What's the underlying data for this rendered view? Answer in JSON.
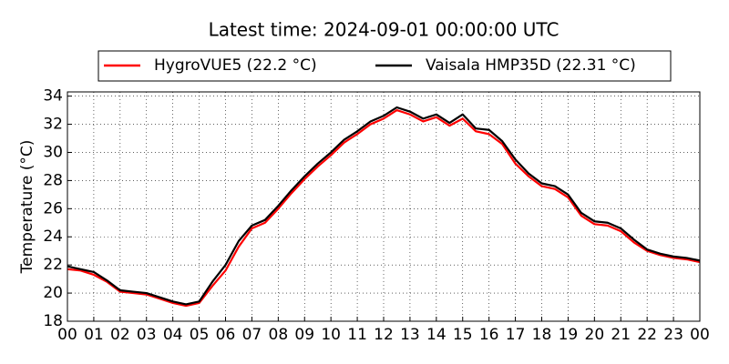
{
  "chart_data": {
    "type": "line",
    "title": "Latest time: 2024-09-01 00:00:00 UTC",
    "y_label": "Temperature (°C)",
    "x": [
      0,
      0.5,
      1,
      1.5,
      2,
      2.5,
      3,
      3.5,
      4,
      4.5,
      5,
      5.5,
      6,
      6.5,
      7,
      7.5,
      8,
      8.5,
      9,
      9.5,
      10,
      10.5,
      11,
      11.5,
      12,
      12.5,
      13,
      13.5,
      14,
      14.5,
      15,
      15.5,
      16,
      16.5,
      17,
      17.5,
      18,
      18.5,
      19,
      19.5,
      20,
      20.5,
      21,
      21.5,
      22,
      22.5,
      23,
      23.5,
      24
    ],
    "series": [
      {
        "name": "HygroVUE5 (22.2 °C)",
        "color": "#ff0000",
        "values": [
          21.7,
          21.6,
          21.3,
          20.8,
          20.1,
          20.0,
          19.9,
          19.6,
          19.3,
          19.1,
          19.3,
          20.5,
          21.6,
          23.3,
          24.6,
          25.0,
          26.0,
          27.1,
          28.1,
          29.0,
          29.8,
          30.7,
          31.3,
          32.0,
          32.4,
          33.0,
          32.7,
          32.2,
          32.5,
          31.9,
          32.4,
          31.5,
          31.3,
          30.6,
          29.2,
          28.3,
          27.6,
          27.4,
          26.8,
          25.5,
          24.9,
          24.8,
          24.4,
          23.6,
          23.0,
          22.7,
          22.5,
          22.4,
          22.2
        ]
      },
      {
        "name": "Vaisala HMP35D (22.31 °C)",
        "color": "#000000",
        "values": [
          21.9,
          21.7,
          21.5,
          20.9,
          20.2,
          20.1,
          20.0,
          19.7,
          19.4,
          19.2,
          19.4,
          20.8,
          22.0,
          23.7,
          24.8,
          25.2,
          26.2,
          27.3,
          28.3,
          29.2,
          30.0,
          30.9,
          31.5,
          32.2,
          32.6,
          33.2,
          32.9,
          32.4,
          32.7,
          32.1,
          32.7,
          31.7,
          31.6,
          30.8,
          29.5,
          28.5,
          27.8,
          27.6,
          27.0,
          25.7,
          25.1,
          25.0,
          24.6,
          23.8,
          23.1,
          22.8,
          22.6,
          22.5,
          22.31
        ]
      }
    ],
    "xlim": [
      0,
      24
    ],
    "xticks": [
      {
        "value": 0,
        "label": "00"
      },
      {
        "value": 1,
        "label": "01"
      },
      {
        "value": 2,
        "label": "02"
      },
      {
        "value": 3,
        "label": "03"
      },
      {
        "value": 4,
        "label": "04"
      },
      {
        "value": 5,
        "label": "05"
      },
      {
        "value": 6,
        "label": "06"
      },
      {
        "value": 7,
        "label": "07"
      },
      {
        "value": 8,
        "label": "08"
      },
      {
        "value": 9,
        "label": "09"
      },
      10,
      11,
      12,
      13,
      14,
      15,
      16,
      17,
      18,
      19,
      20,
      21,
      22,
      23,
      {
        "value": 24,
        "label": "00"
      }
    ],
    "ylim": [
      18,
      34.3
    ],
    "yticks": [
      18,
      20,
      22,
      24,
      26,
      28,
      30,
      32,
      34
    ],
    "grid": true,
    "legend": "top"
  }
}
